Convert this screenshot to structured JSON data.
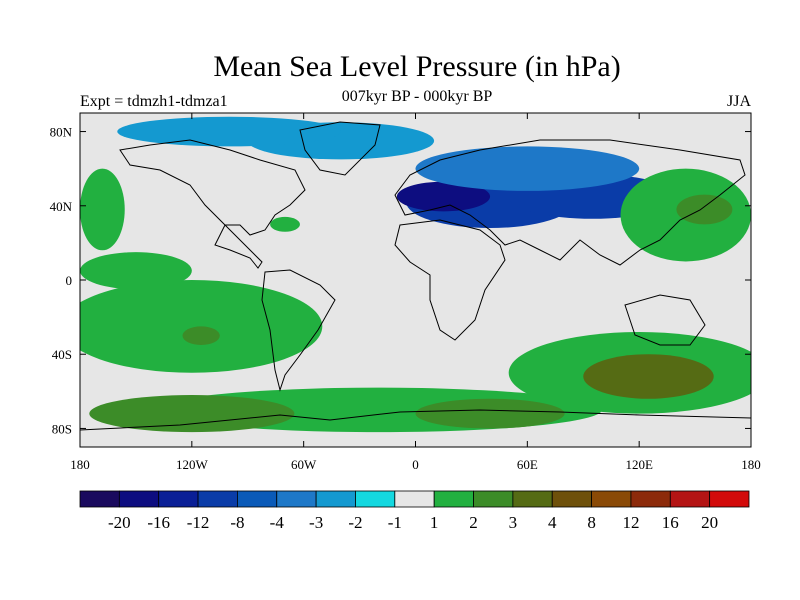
{
  "chart_data": {
    "type": "heatmap",
    "title": "Mean Sea Level Pressure (in hPa)",
    "experiment": "Expt = tdmzh1-tdmza1",
    "period": "007kyr BP - 000kyr BP",
    "season": "JJA",
    "xlabel": "",
    "ylabel": "",
    "xlim": [
      -180,
      180
    ],
    "ylim": [
      -90,
      90
    ],
    "x_ticks": [
      {
        "value": -180,
        "label": "180"
      },
      {
        "value": -120,
        "label": "120W"
      },
      {
        "value": -60,
        "label": "60W"
      },
      {
        "value": 0,
        "label": "0"
      },
      {
        "value": 60,
        "label": "60E"
      },
      {
        "value": 120,
        "label": "120E"
      },
      {
        "value": 180,
        "label": "180"
      }
    ],
    "y_ticks": [
      {
        "value": 80,
        "label": "80N"
      },
      {
        "value": 40,
        "label": "40N"
      },
      {
        "value": 0,
        "label": "0"
      },
      {
        "value": -40,
        "label": "40S"
      },
      {
        "value": -80,
        "label": "80S"
      }
    ],
    "colorbar": {
      "levels": [
        "-20",
        "-16",
        "-12",
        "-8",
        "-4",
        "-3",
        "-2",
        "-1",
        "1",
        "2",
        "3",
        "4",
        "8",
        "12",
        "16",
        "20"
      ],
      "colors": [
        "#1a0a5e",
        "#0d0d80",
        "#0a1f96",
        "#0a3ca8",
        "#0a5ab8",
        "#1e78c8",
        "#1499d0",
        "#14d8e0",
        "#e6e6e6",
        "#22b040",
        "#3c8c28",
        "#556b14",
        "#6e500a",
        "#8a4a06",
        "#8c2a0a",
        "#b41414",
        "#d20a0a"
      ]
    },
    "anomaly_regions": [
      {
        "lon": 40,
        "lat": 42,
        "rx": 45,
        "ry": 14,
        "level": 3
      },
      {
        "lon": 15,
        "lat": 45,
        "rx": 25,
        "ry": 8,
        "level": 1
      },
      {
        "lon": 95,
        "lat": 45,
        "rx": 45,
        "ry": 12,
        "level": 3
      },
      {
        "lon": 60,
        "lat": 60,
        "rx": 60,
        "ry": 12,
        "level": 5
      },
      {
        "lon": -40,
        "lat": 75,
        "rx": 50,
        "ry": 10,
        "level": 6
      },
      {
        "lon": -100,
        "lat": 80,
        "rx": 60,
        "ry": 8,
        "level": 6
      },
      {
        "lon": -168,
        "lat": 38,
        "rx": 12,
        "ry": 22,
        "level": 9
      },
      {
        "lon": -120,
        "lat": -25,
        "rx": 70,
        "ry": 25,
        "level": 9
      },
      {
        "lon": -150,
        "lat": 5,
        "rx": 30,
        "ry": 10,
        "level": 9
      },
      {
        "lon": 145,
        "lat": 35,
        "rx": 35,
        "ry": 25,
        "level": 9
      },
      {
        "lon": 155,
        "lat": 38,
        "rx": 15,
        "ry": 8,
        "level": 10
      },
      {
        "lon": 120,
        "lat": -50,
        "rx": 70,
        "ry": 22,
        "level": 9
      },
      {
        "lon": 125,
        "lat": -52,
        "rx": 35,
        "ry": 12,
        "level": 11
      },
      {
        "lon": -20,
        "lat": -70,
        "rx": 120,
        "ry": 12,
        "level": 9
      },
      {
        "lon": -120,
        "lat": -72,
        "rx": 55,
        "ry": 10,
        "level": 10
      },
      {
        "lon": 40,
        "lat": -72,
        "rx": 40,
        "ry": 8,
        "level": 10
      },
      {
        "lon": -115,
        "lat": -30,
        "rx": 10,
        "ry": 5,
        "level": 10
      },
      {
        "lon": -70,
        "lat": 30,
        "rx": 8,
        "ry": 4,
        "level": 9
      }
    ]
  }
}
